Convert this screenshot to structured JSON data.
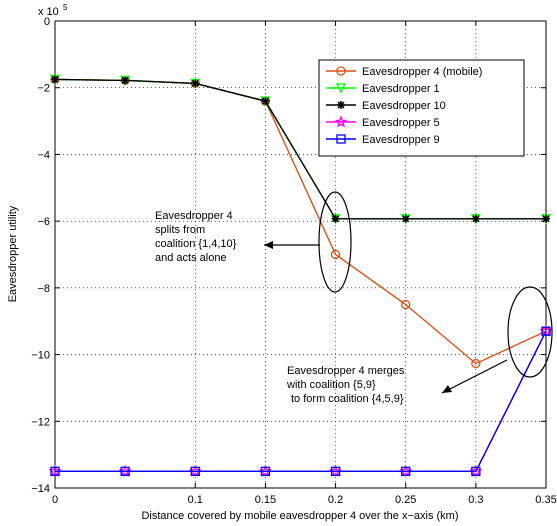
{
  "chart_data": {
    "type": "line",
    "xlabel": "Distance covered by mobile eavesdropper 4 over the x−axis (km)",
    "ylabel": "Eavesdropper utility",
    "y_multiplier": {
      "base": "x 10",
      "exponent": "5"
    },
    "xlim": [
      0,
      0.35
    ],
    "ylim": [
      -14,
      0
    ],
    "x_ticks": [
      {
        "value": 0,
        "label": "0"
      },
      {
        "value": 0.1,
        "label": "0.1"
      },
      {
        "value": 0.15,
        "label": "0.15"
      },
      {
        "value": 0.2,
        "label": "0.2"
      },
      {
        "value": 0.25,
        "label": "0.25"
      },
      {
        "value": 0.3,
        "label": "0.3"
      },
      {
        "value": 0.35,
        "label": "0.35"
      }
    ],
    "y_ticks": [
      {
        "value": 0,
        "label": "0"
      },
      {
        "value": -2,
        "label": "−2"
      },
      {
        "value": -4,
        "label": "−4"
      },
      {
        "value": -6,
        "label": "−6"
      },
      {
        "value": -8,
        "label": "−8"
      },
      {
        "value": -10,
        "label": "−10"
      },
      {
        "value": -12,
        "label": "−12"
      },
      {
        "value": -14,
        "label": "−14"
      }
    ],
    "grid": true,
    "legend_position": "top-right",
    "x": [
      0,
      0.05,
      0.1,
      0.15,
      0.2,
      0.25,
      0.3,
      0.35
    ],
    "series": [
      {
        "name": "Eavesdropper 4 (mobile)",
        "color": "#d95319",
        "marker": "circle",
        "values": [
          -1.75,
          -1.78,
          -1.87,
          -2.4,
          -7.0,
          -8.5,
          -10.27,
          -9.3
        ]
      },
      {
        "name": "Eavesdropper 1",
        "color": "#00ff00",
        "marker": "triangle-down",
        "values": [
          -1.75,
          -1.78,
          -1.87,
          -2.4,
          -5.93,
          -5.93,
          -5.93,
          -5.93
        ]
      },
      {
        "name": "Eavesdropper 10",
        "color": "#000000",
        "marker": "asterisk",
        "values": [
          -1.75,
          -1.78,
          -1.87,
          -2.4,
          -5.93,
          -5.93,
          -5.93,
          -5.93
        ]
      },
      {
        "name": "Eavesdropper 5",
        "color": "#ff00ff",
        "marker": "star",
        "values": [
          -13.5,
          -13.5,
          -13.5,
          -13.5,
          -13.5,
          -13.5,
          -13.5,
          -9.3
        ]
      },
      {
        "name": "Eavesdropper 9",
        "color": "#0000ff",
        "marker": "square",
        "values": [
          -13.5,
          -13.5,
          -13.5,
          -13.5,
          -13.5,
          -13.5,
          -13.5,
          -9.3
        ]
      }
    ],
    "annotations": [
      {
        "lines": [
          "Eavesdropper 4",
          "splits from",
          "coalition {1,4,10}",
          "and acts alone"
        ]
      },
      {
        "lines": [
          "Eavesdropper 4 merges",
          "with coalition {5,9}",
          "to form coalition {4,5,9}"
        ]
      }
    ]
  }
}
